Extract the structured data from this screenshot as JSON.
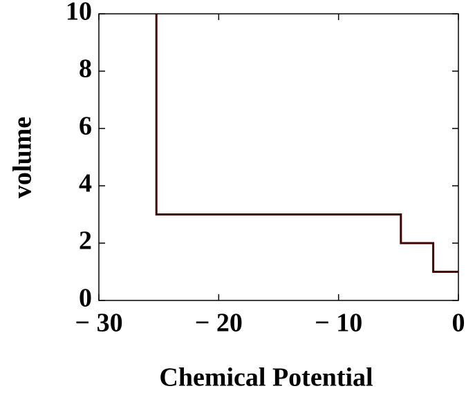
{
  "chart_data": {
    "type": "line",
    "xlabel": "Chemical Potential",
    "ylabel": "volume",
    "x": [
      -25.2,
      -25.2,
      -4.8,
      -4.8,
      -2.1,
      -2.1,
      0
    ],
    "series": [
      {
        "color": "#400000",
        "values": [
          10,
          3,
          3,
          2,
          2,
          1,
          1
        ]
      }
    ],
    "xlim": [
      -30,
      0
    ],
    "ylim": [
      0,
      10
    ],
    "xticks": [
      {
        "value": -30,
        "label": "− 30"
      },
      {
        "value": -20,
        "label": "− 20"
      },
      {
        "value": -10,
        "label": "− 10"
      },
      0
    ],
    "yticks": [
      0,
      2,
      4,
      6,
      8,
      10
    ]
  }
}
